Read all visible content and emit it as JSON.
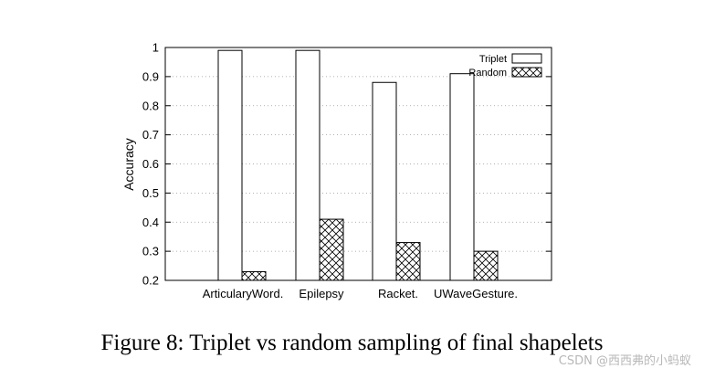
{
  "chart_data": {
    "type": "bar",
    "categories": [
      "ArticularyWord.",
      "Epilepsy",
      "Racket.",
      "UWaveGesture."
    ],
    "series": [
      {
        "name": "Triplet",
        "values": [
          0.99,
          0.99,
          0.88,
          0.91
        ],
        "pattern": "none"
      },
      {
        "name": "Random",
        "values": [
          0.23,
          0.41,
          0.33,
          0.3
        ],
        "pattern": "crosshatch"
      }
    ],
    "ylabel": "Accuracy",
    "xlabel": "",
    "ylim": [
      0.2,
      1.0
    ],
    "yticks": [
      "0.2",
      "0.3",
      "0.4",
      "0.5",
      "0.6",
      "0.7",
      "0.8",
      "0.9",
      "1"
    ],
    "grid": "horizontal-dotted",
    "legend_position": "top-right"
  },
  "caption": "Figure 8: Triplet vs random sampling of final shapelets",
  "watermark": "CSDN @西西弗的小蚂蚁"
}
